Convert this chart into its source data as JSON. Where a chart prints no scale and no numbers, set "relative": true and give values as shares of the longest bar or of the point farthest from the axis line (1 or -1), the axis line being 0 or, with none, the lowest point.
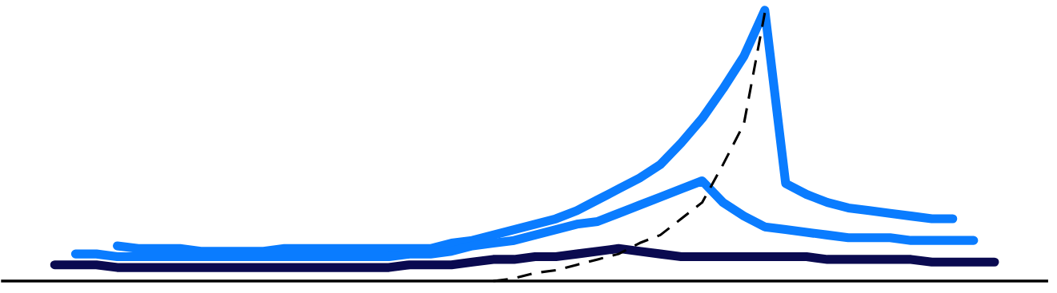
{
  "chart_data": {
    "type": "line",
    "relative": true,
    "legend": false,
    "marker": "none",
    "categories": [
      null,
      null,
      null,
      null,
      null,
      null,
      null,
      null,
      null,
      null,
      null,
      null,
      null,
      null,
      null,
      null,
      null,
      null,
      null,
      null,
      null,
      null,
      null,
      null,
      null,
      null,
      null,
      null,
      null,
      null,
      null,
      null,
      null,
      null,
      null,
      null,
      null,
      null,
      null,
      null,
      null,
      null,
      null,
      null,
      null,
      null,
      null,
      null,
      null,
      null
    ],
    "series": [
      {
        "color": "#0a7cff",
        "line_style": "solid",
        "values": [
          null,
          null,
          null,
          null,
          null,
          0.13,
          0.12,
          0.12,
          0.12,
          0.11,
          0.11,
          0.11,
          0.11,
          0.12,
          0.12,
          0.12,
          0.12,
          0.12,
          0.12,
          0.12,
          0.12,
          0.14,
          0.15,
          0.17,
          0.19,
          0.21,
          0.23,
          0.26,
          0.3,
          0.34,
          0.38,
          0.43,
          0.51,
          0.6,
          0.71,
          0.83,
          1.0,
          0.36,
          0.32,
          0.29,
          0.27,
          0.26,
          0.25,
          0.24,
          0.23,
          0.23,
          null,
          null,
          null,
          null
        ]
      },
      {
        "color": "#0a7cff",
        "line_style": "solid",
        "values": [
          null,
          null,
          null,
          0.1,
          0.1,
          0.09,
          0.09,
          0.09,
          0.09,
          0.09,
          0.09,
          0.09,
          0.09,
          0.09,
          0.09,
          0.09,
          0.09,
          0.09,
          0.09,
          0.1,
          0.1,
          0.11,
          0.13,
          0.14,
          0.15,
          0.17,
          0.19,
          0.21,
          0.22,
          0.25,
          0.28,
          0.31,
          0.34,
          0.37,
          0.29,
          0.24,
          0.2,
          0.19,
          0.18,
          0.17,
          0.16,
          0.16,
          0.16,
          0.15,
          0.15,
          0.15,
          0.15,
          null,
          null,
          null
        ]
      },
      {
        "color": "#0a0a50",
        "line_style": "solid",
        "values": [
          null,
          null,
          0.06,
          0.06,
          0.06,
          0.05,
          0.05,
          0.05,
          0.05,
          0.05,
          0.05,
          0.05,
          0.05,
          0.05,
          0.05,
          0.05,
          0.05,
          0.05,
          0.05,
          0.06,
          0.06,
          0.06,
          0.07,
          0.08,
          0.08,
          0.09,
          0.09,
          0.1,
          0.11,
          0.12,
          0.11,
          0.1,
          0.09,
          0.09,
          0.09,
          0.09,
          0.09,
          0.09,
          0.09,
          0.08,
          0.08,
          0.08,
          0.08,
          0.08,
          0.07,
          0.07,
          0.07,
          0.07,
          null,
          null
        ]
      },
      {
        "color": "#000000",
        "line_style": "dashed",
        "values": [
          null,
          null,
          null,
          null,
          null,
          null,
          null,
          null,
          null,
          null,
          null,
          null,
          null,
          null,
          null,
          null,
          null,
          null,
          null,
          null,
          null,
          null,
          null,
          0.0,
          0.01,
          0.03,
          0.04,
          0.06,
          0.08,
          0.1,
          0.14,
          0.17,
          0.23,
          0.29,
          0.43,
          0.58,
          0.99,
          null,
          null,
          null,
          null,
          null,
          null,
          null,
          null,
          null,
          null,
          null,
          null,
          null
        ]
      }
    ]
  }
}
